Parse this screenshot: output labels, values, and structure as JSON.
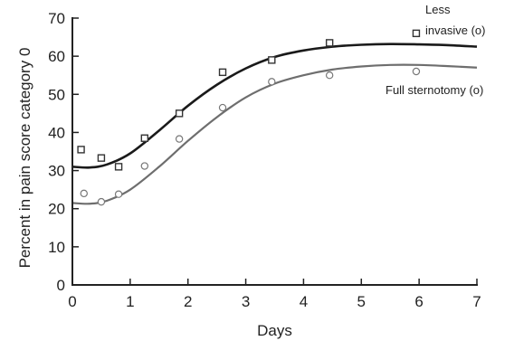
{
  "chart_data": {
    "type": "scatter",
    "title": "",
    "xlabel": "Days",
    "ylabel": "Percent in pain score category 0",
    "xlim": [
      0,
      7
    ],
    "ylim": [
      0,
      70
    ],
    "x_ticks": [
      0,
      1,
      2,
      3,
      4,
      5,
      6,
      7
    ],
    "y_ticks": [
      0,
      10,
      20,
      30,
      40,
      50,
      60,
      70
    ],
    "grid": false,
    "series": [
      {
        "name": "Less invasive (o)",
        "marker": "square",
        "color": "#1a1a1a",
        "points": [
          {
            "x": 0.15,
            "y": 35.5
          },
          {
            "x": 0.5,
            "y": 33.3
          },
          {
            "x": 0.8,
            "y": 31.0
          },
          {
            "x": 1.25,
            "y": 38.5
          },
          {
            "x": 1.85,
            "y": 45.0
          },
          {
            "x": 2.6,
            "y": 55.8
          },
          {
            "x": 3.45,
            "y": 59.0
          },
          {
            "x": 4.45,
            "y": 63.5
          },
          {
            "x": 5.95,
            "y": 66.0
          }
        ],
        "fit": [
          {
            "x": 0.0,
            "y": 31.0
          },
          {
            "x": 0.3,
            "y": 30.8
          },
          {
            "x": 0.6,
            "y": 31.6
          },
          {
            "x": 1.0,
            "y": 34.5
          },
          {
            "x": 1.5,
            "y": 40.5
          },
          {
            "x": 2.0,
            "y": 47.0
          },
          {
            "x": 2.5,
            "y": 52.5
          },
          {
            "x": 3.0,
            "y": 56.8
          },
          {
            "x": 3.5,
            "y": 59.8
          },
          {
            "x": 4.0,
            "y": 61.5
          },
          {
            "x": 4.5,
            "y": 62.5
          },
          {
            "x": 5.0,
            "y": 63.0
          },
          {
            "x": 5.5,
            "y": 63.2
          },
          {
            "x": 6.0,
            "y": 63.1
          },
          {
            "x": 6.5,
            "y": 62.9
          },
          {
            "x": 7.0,
            "y": 62.5
          }
        ]
      },
      {
        "name": "Full sternotomy (o)",
        "marker": "circle",
        "color": "#6e6e6e",
        "points": [
          {
            "x": 0.2,
            "y": 24.0
          },
          {
            "x": 0.5,
            "y": 21.8
          },
          {
            "x": 0.8,
            "y": 23.8
          },
          {
            "x": 1.25,
            "y": 31.2
          },
          {
            "x": 1.85,
            "y": 38.3
          },
          {
            "x": 2.6,
            "y": 46.5
          },
          {
            "x": 3.45,
            "y": 53.3
          },
          {
            "x": 4.45,
            "y": 55.0
          },
          {
            "x": 5.95,
            "y": 56.0
          }
        ],
        "fit": [
          {
            "x": 0.0,
            "y": 21.5
          },
          {
            "x": 0.3,
            "y": 21.3
          },
          {
            "x": 0.6,
            "y": 22.1
          },
          {
            "x": 1.0,
            "y": 25.0
          },
          {
            "x": 1.5,
            "y": 31.0
          },
          {
            "x": 2.0,
            "y": 37.8
          },
          {
            "x": 2.5,
            "y": 44.0
          },
          {
            "x": 3.0,
            "y": 49.2
          },
          {
            "x": 3.5,
            "y": 52.8
          },
          {
            "x": 4.0,
            "y": 55.0
          },
          {
            "x": 4.5,
            "y": 56.5
          },
          {
            "x": 5.0,
            "y": 57.3
          },
          {
            "x": 5.5,
            "y": 57.7
          },
          {
            "x": 6.0,
            "y": 57.7
          },
          {
            "x": 6.5,
            "y": 57.4
          },
          {
            "x": 7.0,
            "y": 57.0
          }
        ]
      }
    ],
    "annotations": [
      {
        "lines": [
          "Less",
          "invasive (o)"
        ],
        "series": 0
      },
      {
        "lines": [
          "Full sternotomy (o)"
        ],
        "series": 1
      }
    ]
  }
}
